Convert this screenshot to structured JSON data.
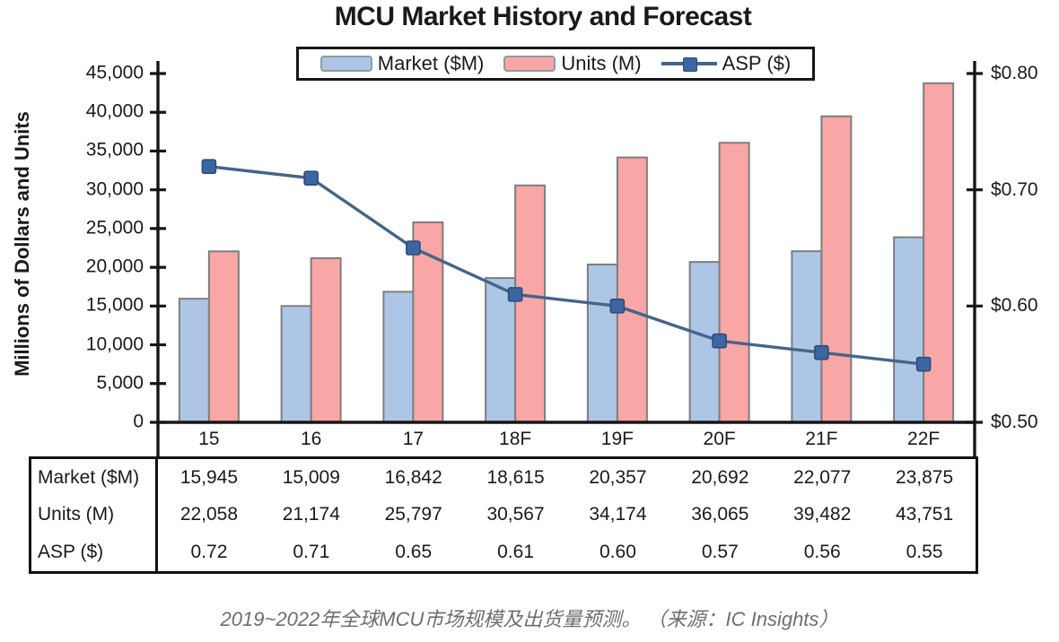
{
  "title": "MCU Market History and Forecast",
  "caption": "2019~2022年全球MCU市场规模及出货量预测。 （来源：IC Insights）",
  "colors": {
    "market_bar": "#aec6e6",
    "units_bar": "#f8a6a6",
    "bar_border": "#7e7e7e",
    "asp_line": "#45658a",
    "asp_marker": "#3b66a3",
    "asp_marker_border": "#2c4d78",
    "axis": "#161616"
  },
  "legend": {
    "items": [
      {
        "label": "Market ($M)",
        "swatch": "bar",
        "color": "#aec6e6"
      },
      {
        "label": "Units (M)",
        "swatch": "bar",
        "color": "#f8a6a6"
      },
      {
        "label": "ASP ($)",
        "swatch": "line",
        "color": "#45658a",
        "marker": "#3b66a3"
      }
    ]
  },
  "y_left": {
    "title": "Millions of Dollars and Units",
    "min": 0,
    "max": 45000,
    "ticks": [
      {
        "label": "45,000",
        "value": 45000
      },
      {
        "label": "40,000",
        "value": 40000
      },
      {
        "label": "35,000",
        "value": 35000
      },
      {
        "label": "30,000",
        "value": 30000
      },
      {
        "label": "25,000",
        "value": 25000
      },
      {
        "label": "20,000",
        "value": 20000
      },
      {
        "label": "15,000",
        "value": 15000
      },
      {
        "label": "10,000",
        "value": 10000
      },
      {
        "label": "5,000",
        "value": 5000
      },
      {
        "label": "0",
        "value": 0
      }
    ]
  },
  "y_right": {
    "min": 0.5,
    "max": 0.8,
    "ticks": [
      {
        "label": "$0.80",
        "value": 0.8
      },
      {
        "label": "$0.70",
        "value": 0.7
      },
      {
        "label": "$0.60",
        "value": 0.6
      },
      {
        "label": "$0.50",
        "value": 0.5
      }
    ]
  },
  "chart_data": {
    "type": "bar+line",
    "title": "MCU Market History and Forecast",
    "categories": [
      "15",
      "16",
      "17",
      "18F",
      "19F",
      "20F",
      "21F",
      "22F"
    ],
    "series": [
      {
        "name": "Market ($M)",
        "type": "bar",
        "axis": "left",
        "color": "#aec6e6",
        "values": [
          15945,
          15009,
          16842,
          18615,
          20357,
          20692,
          22077,
          23875
        ]
      },
      {
        "name": "Units (M)",
        "type": "bar",
        "axis": "left",
        "color": "#f8a6a6",
        "values": [
          22058,
          21174,
          25797,
          30567,
          34174,
          36065,
          39482,
          43751
        ]
      },
      {
        "name": "ASP ($)",
        "type": "line",
        "axis": "right",
        "color": "#45658a",
        "values": [
          0.72,
          0.71,
          0.65,
          0.61,
          0.6,
          0.57,
          0.56,
          0.55
        ]
      }
    ],
    "ylabel_left": "Millions of Dollars and Units",
    "ylim_left": [
      0,
      45000
    ],
    "ylim_right": [
      0.5,
      0.8
    ],
    "grid": false,
    "legend_position": "top"
  },
  "table": {
    "rows": [
      {
        "label": "Market ($M)",
        "values": [
          "15,945",
          "15,009",
          "16,842",
          "18,615",
          "20,357",
          "20,692",
          "22,077",
          "23,875"
        ]
      },
      {
        "label": "Units (M)",
        "values": [
          "22,058",
          "21,174",
          "25,797",
          "30,567",
          "34,174",
          "36,065",
          "39,482",
          "43,751"
        ]
      },
      {
        "label": "ASP ($)",
        "values": [
          "0.72",
          "0.71",
          "0.65",
          "0.61",
          "0.60",
          "0.57",
          "0.56",
          "0.55"
        ]
      }
    ]
  }
}
